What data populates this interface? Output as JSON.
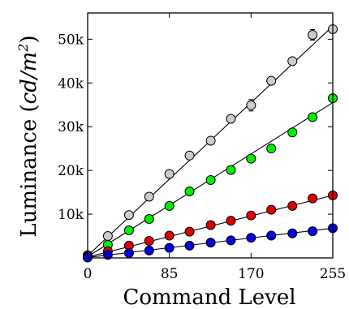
{
  "chart_data": {
    "type": "scatter",
    "xlabel": "Command Level",
    "ylabel": {
      "main": "Luminance (",
      "unit_base": "cd/m",
      "unit_exp": "2",
      "close": ")"
    },
    "xlim": [
      0,
      255
    ],
    "ylim": [
      0,
      56000
    ],
    "xticks": [
      0,
      85,
      170,
      255
    ],
    "xtick_labels": [
      "0",
      "85",
      "170",
      "255"
    ],
    "yticks": [
      10000,
      20000,
      30000,
      40000,
      50000
    ],
    "ytick_labels": [
      "10k",
      "20k",
      "30k",
      "40k",
      "50k"
    ],
    "grid": false,
    "legend": "none",
    "x": [
      0,
      21,
      43,
      64,
      85,
      106,
      128,
      149,
      170,
      191,
      213,
      234,
      255
    ],
    "series": [
      {
        "color": "#cccccc",
        "values": [
          600,
          5000,
          9800,
          14000,
          19200,
          23400,
          26800,
          31800,
          34900,
          40500,
          45000,
          51000,
          52300
        ],
        "error_bars": [
          0,
          0,
          0,
          0,
          0,
          0,
          0,
          0,
          1300,
          0,
          0,
          1200,
          0
        ],
        "fit": [
          [
            0,
            500
          ],
          [
            255,
            53000
          ]
        ]
      },
      {
        "color": "#00ee00",
        "values": [
          400,
          3000,
          6300,
          8900,
          11900,
          15200,
          17800,
          20100,
          22700,
          25000,
          28700,
          32200,
          36500
        ],
        "error_bars": [
          0,
          0,
          0,
          0,
          0,
          0,
          0,
          0,
          0,
          0,
          0,
          0,
          0
        ],
        "fit": [
          [
            0,
            300
          ],
          [
            255,
            35500
          ]
        ]
      },
      {
        "color": "#dd0000",
        "values": [
          200,
          1500,
          2800,
          3900,
          5100,
          6000,
          7500,
          8500,
          9700,
          11000,
          11900,
          13600,
          14300
        ],
        "error_bars": [
          0,
          0,
          0,
          0,
          0,
          0,
          0,
          0,
          0,
          0,
          0,
          0,
          0
        ],
        "fit": [
          [
            0,
            200
          ],
          [
            255,
            14300
          ]
        ]
      },
      {
        "color": "#0000dd",
        "values": [
          100,
          700,
          1100,
          1700,
          2300,
          2800,
          3500,
          4000,
          4600,
          5100,
          5600,
          6100,
          6800
        ],
        "error_bars": [
          0,
          0,
          0,
          0,
          0,
          0,
          0,
          0,
          0,
          0,
          0,
          0,
          0
        ],
        "fit": [
          [
            0,
            100
          ],
          [
            255,
            6800
          ]
        ]
      }
    ]
  }
}
